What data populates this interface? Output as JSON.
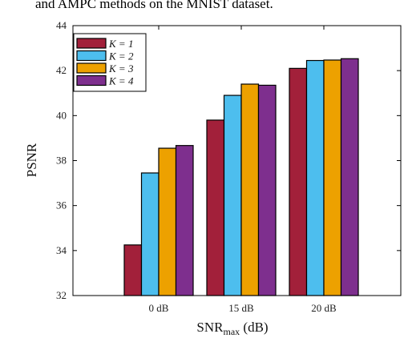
{
  "caption": "and AMPC methods on the MNIST dataset.",
  "chart_data": {
    "type": "bar",
    "categories": [
      "0 dB",
      "15 dB",
      "20 dB"
    ],
    "series": [
      {
        "name": "K = 1",
        "color": "#A2203A",
        "values": [
          34.25,
          39.8,
          42.1
        ]
      },
      {
        "name": "K = 2",
        "color": "#4DBEEE",
        "values": [
          37.45,
          40.9,
          42.45
        ]
      },
      {
        "name": "K = 3",
        "color": "#EDA100",
        "values": [
          38.55,
          41.4,
          42.47
        ]
      },
      {
        "name": "K = 4",
        "color": "#7E2F8E",
        "values": [
          38.67,
          41.35,
          42.53
        ]
      }
    ],
    "ylim": [
      32,
      44
    ],
    "yticks": [
      "32",
      "34",
      "36",
      "38",
      "40",
      "42",
      "44"
    ],
    "ylabel": "PSNR",
    "xlabel": "SNR",
    "xlabel_sub": "max",
    "xlabel_unit": " (dB)",
    "legend_position": "top-left",
    "grid": false
  }
}
